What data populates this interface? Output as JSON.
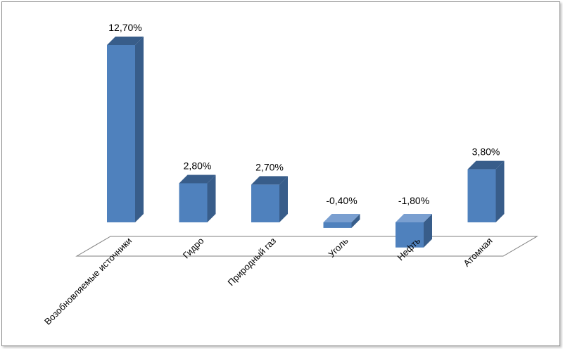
{
  "chart_data": {
    "type": "bar",
    "style": "3d-column",
    "categories": [
      "Возобновляемые источники",
      "Гидро",
      "Природный газ",
      "Уголь",
      "Нефть",
      "Атомная"
    ],
    "values": [
      12.7,
      2.8,
      2.7,
      -0.4,
      -1.8,
      3.8
    ],
    "data_labels": [
      "12,70%",
      "2,80%",
      "2,70%",
      "-0,40%",
      "-1,80%",
      "3,80%"
    ],
    "value_unit": "%",
    "title": "",
    "xlabel": "",
    "ylabel": "",
    "grid": false,
    "legend": "none",
    "colors": {
      "bar_front": "#4f81bd",
      "bar_side": "#385d8a",
      "bar_top": "#7a9fd0",
      "bar_bottom": "#2c4a70",
      "floor_stroke": "#7f7f7f",
      "frame": "#8c8c8c"
    }
  }
}
